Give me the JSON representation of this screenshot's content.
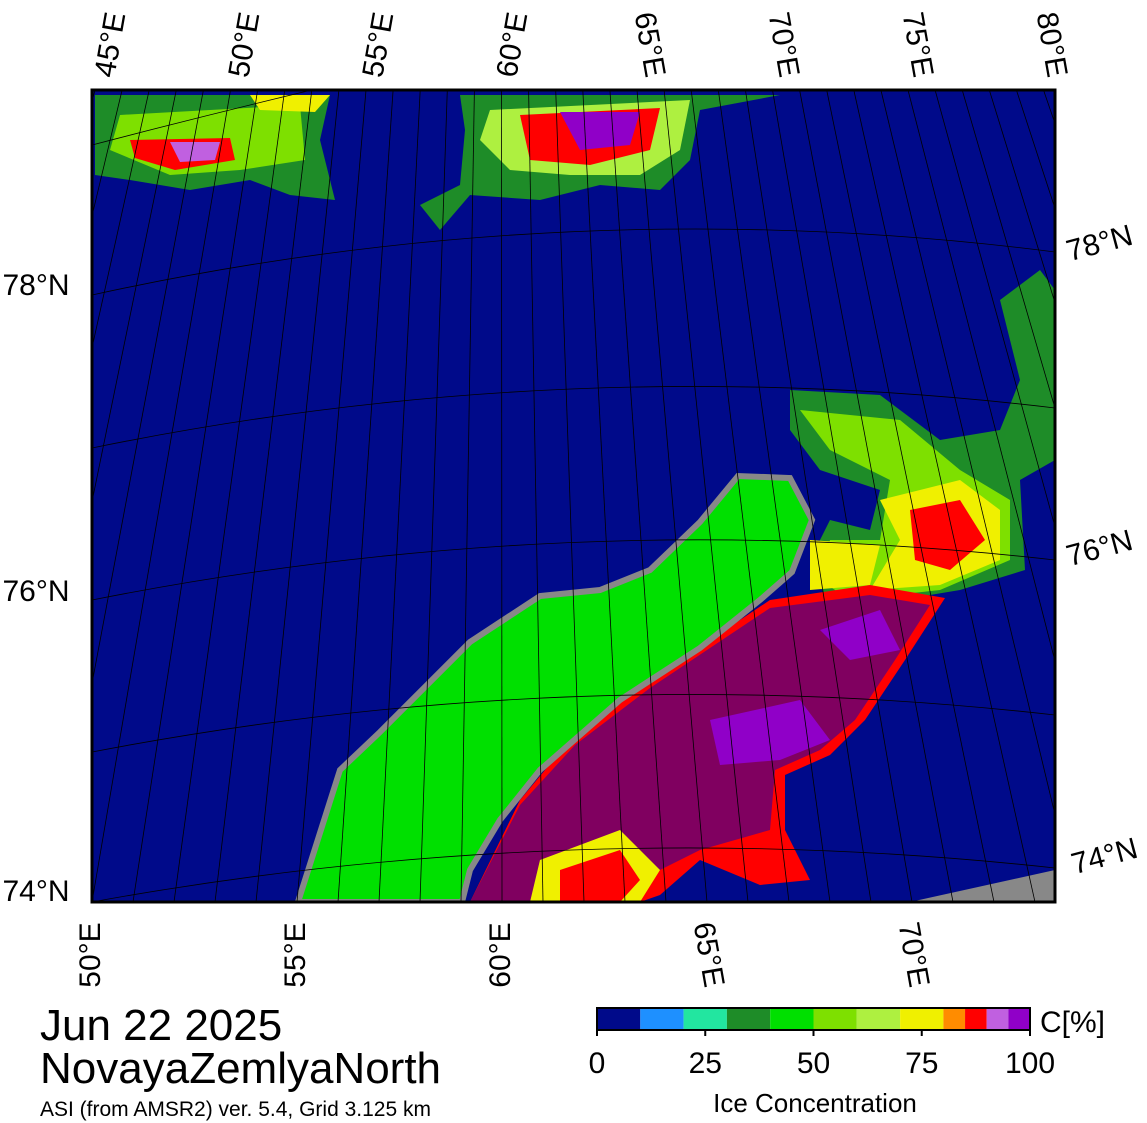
{
  "title": "Jun 22 2025",
  "region": "NovayaZemlyaNorth",
  "source": "ASI (from AMSR2) ver. 5.4,  Grid 3.125 km",
  "top_lon_labels": [
    "45°E",
    "50°E",
    "55°E",
    "60°E",
    "65°E",
    "70°E",
    "75°E",
    "80°E"
  ],
  "bottom_lon_labels": [
    "50°E",
    "55°E",
    "60°E",
    "65°E",
    "70°E"
  ],
  "left_lat_labels": [
    "78°N",
    "76°N",
    "74°N"
  ],
  "right_lat_labels": [
    "78°N",
    "76°N",
    "74°N"
  ],
  "colorbar": {
    "unit": "C[%]",
    "label": "Ice Concentration",
    "lim": [
      0,
      100
    ],
    "ticks": [
      0,
      25,
      50,
      75,
      100
    ],
    "bounds": [
      0,
      10,
      20,
      30,
      40,
      50,
      60,
      70,
      80,
      85,
      90,
      95,
      100
    ],
    "colors": [
      "#000a8a",
      "#1e90ff",
      "#22e6a0",
      "#1e8c28",
      "#00e000",
      "#7ee000",
      "#aef040",
      "#f0f000",
      "#ff8c00",
      "#ff0000",
      "#c060e0",
      "#9000c8"
    ]
  }
}
